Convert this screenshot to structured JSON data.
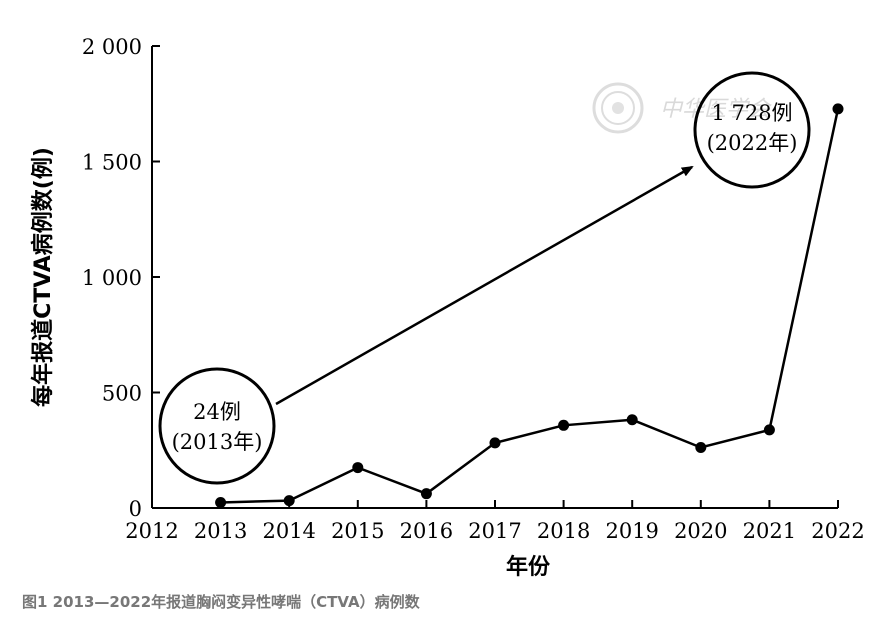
{
  "chart_data": {
    "type": "line",
    "x": [
      2013,
      2014,
      2015,
      2016,
      2017,
      2018,
      2019,
      2020,
      2021,
      2022
    ],
    "values": [
      24,
      32,
      175,
      62,
      282,
      358,
      382,
      262,
      338,
      1728
    ],
    "x_ticks": [
      "2012",
      "2013",
      "2014",
      "2015",
      "2016",
      "2017",
      "2018",
      "2019",
      "2020",
      "2021",
      "2022"
    ],
    "xlim": [
      2012,
      2022
    ],
    "y_ticks": [
      "0",
      "500",
      "1 000",
      "1 500",
      "2 000"
    ],
    "ylim": [
      0,
      2000
    ],
    "xlabel": "年份",
    "ylabel": "每年报道CTVA病例数(例)",
    "grid": false,
    "annotations": [
      {
        "line1": "24例",
        "line2": "(2013年)"
      },
      {
        "line1": "1 728例",
        "line2": "(2022年)"
      }
    ]
  },
  "watermark": "中华医学会",
  "caption": "图1 2013—2022年报道胸闷变异性哮喘（CTVA）病例数"
}
